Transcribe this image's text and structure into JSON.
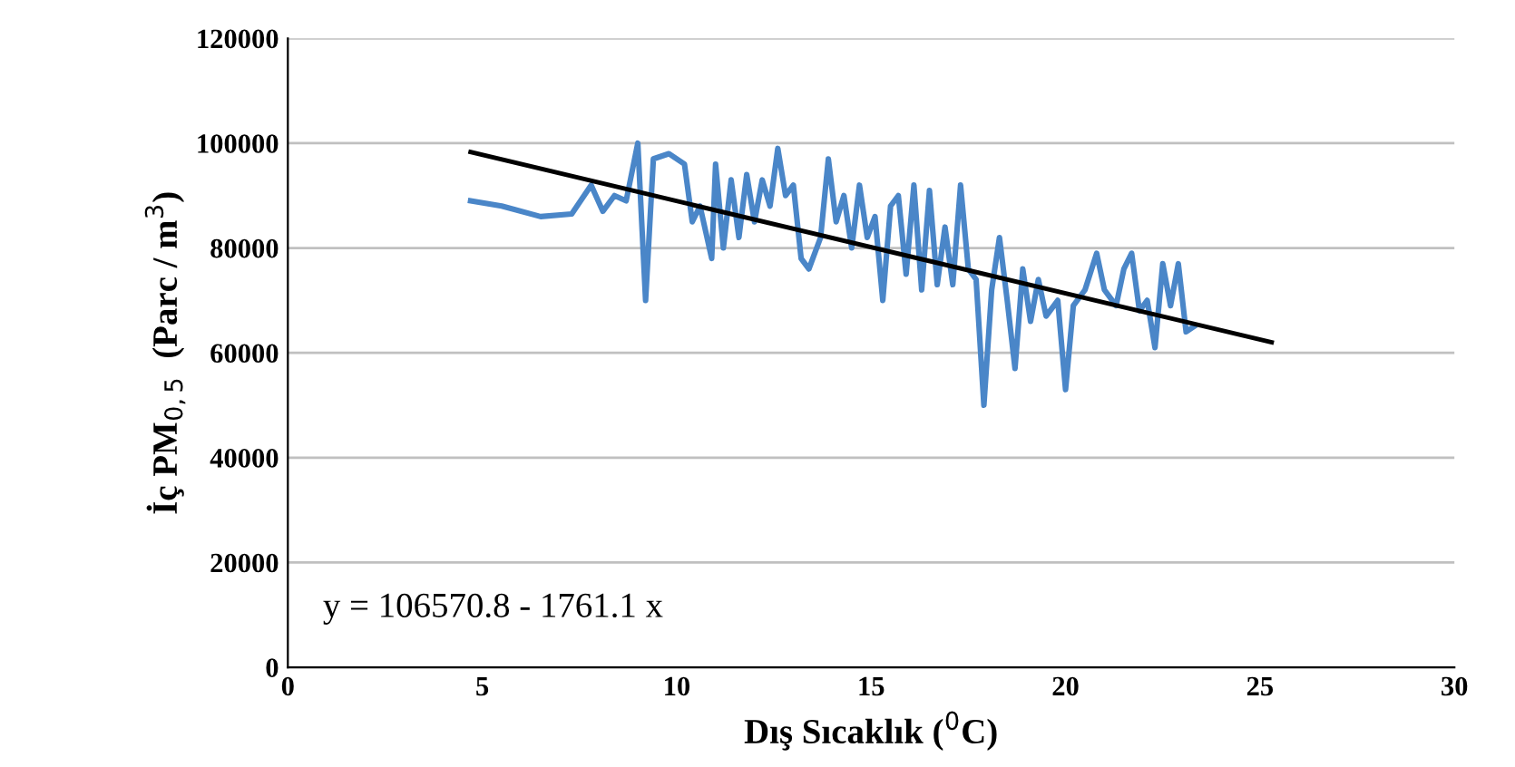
{
  "chart_data": {
    "type": "line",
    "xlabel": "Dış Sıcaklık ($^{0}$C)",
    "ylabel": "İç PM$_{0,5}$  (Parc / m$^{3}$)",
    "xlim": [
      0,
      30
    ],
    "xticks": [
      0,
      5,
      10,
      15,
      20,
      25,
      30
    ],
    "ylim": [
      0,
      120000
    ],
    "yticks": [
      0,
      20000,
      40000,
      60000,
      80000,
      100000,
      120000
    ],
    "grid": "y",
    "legend": false,
    "marker": "none",
    "line_style": "solid",
    "annotations": [
      "y = 106570.8 - 1761.1 x"
    ],
    "series": [
      {
        "color": "#4a86c8",
        "x": [
          4.7,
          5.5,
          6.5,
          7.3,
          7.8,
          8.1,
          8.4,
          8.7,
          9.0,
          9.2,
          9.4,
          9.8,
          10.2,
          10.4,
          10.6,
          10.9,
          11.0,
          11.2,
          11.4,
          11.6,
          11.8,
          12.0,
          12.2,
          12.4,
          12.6,
          12.8,
          13.0,
          13.2,
          13.4,
          13.7,
          13.9,
          14.1,
          14.3,
          14.5,
          14.7,
          14.9,
          15.1,
          15.3,
          15.5,
          15.7,
          15.9,
          16.1,
          16.3,
          16.5,
          16.7,
          16.9,
          17.1,
          17.3,
          17.5,
          17.7,
          17.9,
          18.1,
          18.3,
          18.5,
          18.7,
          18.9,
          19.1,
          19.3,
          19.5,
          19.8,
          20.0,
          20.2,
          20.5,
          20.8,
          21.0,
          21.3,
          21.5,
          21.7,
          21.9,
          22.1,
          22.3,
          22.5,
          22.7,
          22.9,
          23.1,
          23.3
        ],
        "values": [
          89000,
          88000,
          86000,
          86500,
          92000,
          87000,
          90000,
          89000,
          100000,
          70000,
          97000,
          98000,
          96000,
          85000,
          88000,
          78000,
          96000,
          80000,
          93000,
          82000,
          94000,
          85000,
          93000,
          88000,
          99000,
          90000,
          92000,
          78000,
          76000,
          82000,
          97000,
          85000,
          90000,
          80000,
          92000,
          82000,
          86000,
          70000,
          88000,
          90000,
          75000,
          92000,
          72000,
          91000,
          73000,
          84000,
          73000,
          92000,
          76000,
          74000,
          50000,
          72000,
          82000,
          70000,
          57000,
          76000,
          66000,
          74000,
          67000,
          70000,
          53000,
          69000,
          72000,
          79000,
          72000,
          69000,
          76000,
          79000,
          68000,
          70000,
          61000,
          77000,
          69000,
          77000,
          64000,
          65000
        ]
      },
      {
        "type": "line",
        "color": "#000000",
        "x": [
          4.7,
          25.3
        ],
        "values": [
          98300,
          62000
        ]
      }
    ]
  }
}
